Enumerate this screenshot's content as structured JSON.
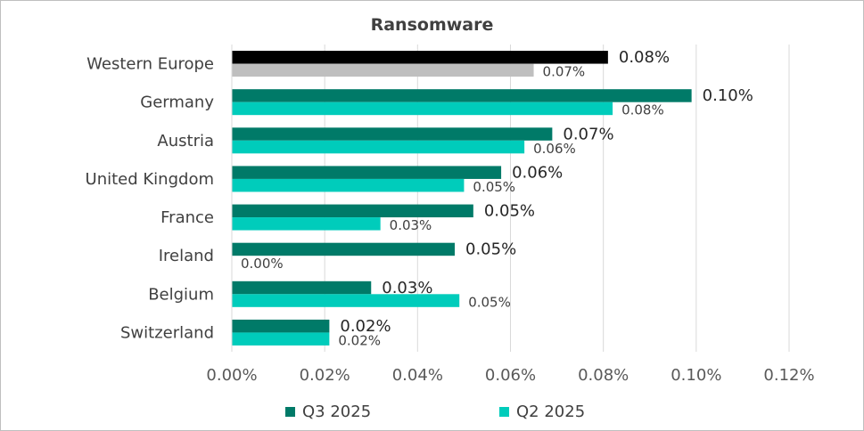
{
  "chart_data": {
    "type": "bar",
    "orientation": "horizontal",
    "title": "Ransomware",
    "categories": [
      "Western Europe",
      "Germany",
      "Austria",
      "United Kingdom",
      "France",
      "Ireland",
      "Belgium",
      "Switzerland"
    ],
    "series": [
      {
        "name": "Q3 2025",
        "values": [
          0.081,
          0.099,
          0.069,
          0.058,
          0.052,
          0.048,
          0.03,
          0.021
        ],
        "labels": [
          "0.08%",
          "0.10%",
          "0.07%",
          "0.06%",
          "0.05%",
          "0.05%",
          "0.03%",
          "0.02%"
        ],
        "color": "#007a68",
        "highlight_color": "#000000"
      },
      {
        "name": "Q2 2025",
        "values": [
          0.065,
          0.082,
          0.063,
          0.05,
          0.032,
          0.0,
          0.049,
          0.021
        ],
        "labels": [
          "0.07%",
          "0.08%",
          "0.06%",
          "0.05%",
          "0.03%",
          "0.00%",
          "0.05%",
          "0.02%"
        ],
        "color": "#00ccbb",
        "highlight_color": "#bfbfbf"
      }
    ],
    "highlight_category": "Western Europe",
    "x_ticks": [
      "0.00%",
      "0.02%",
      "0.04%",
      "0.06%",
      "0.08%",
      "0.10%",
      "0.12%"
    ],
    "xlim": [
      0,
      0.12
    ],
    "grid": "vertical",
    "legend_position": "bottom"
  }
}
